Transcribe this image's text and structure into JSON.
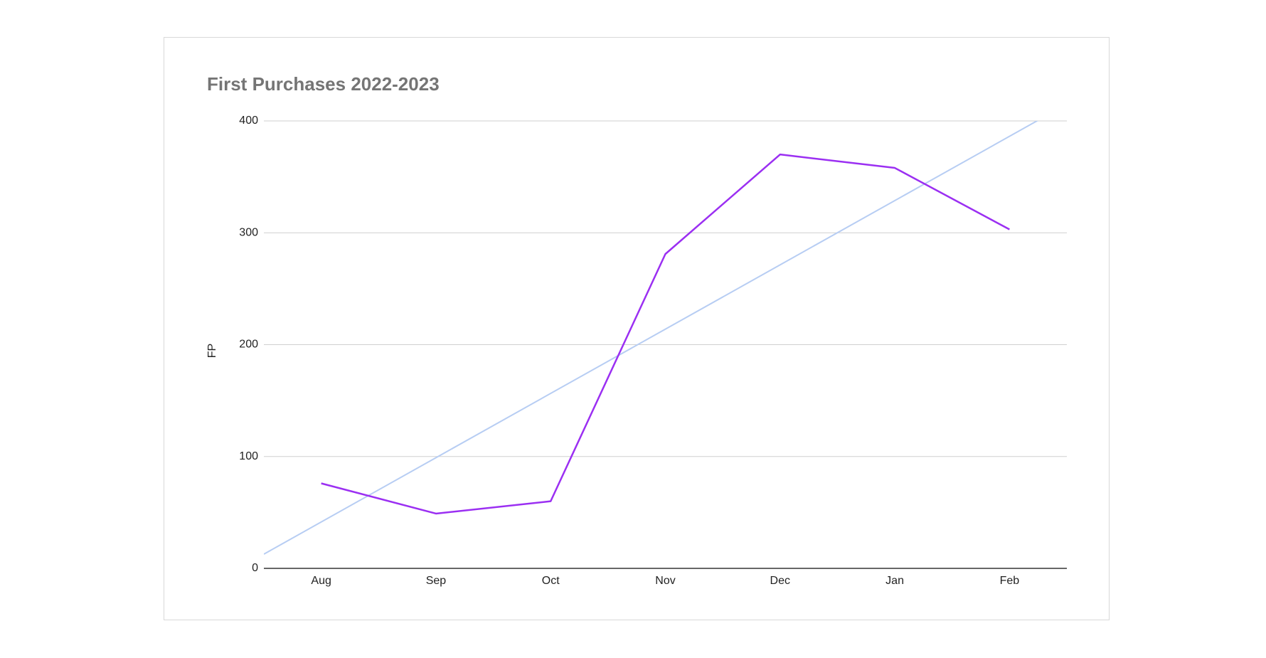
{
  "chart_data": {
    "type": "line",
    "title": "First Purchases  2022-2023",
    "y_label": "FP",
    "categories": [
      "Aug",
      "Sep",
      "Oct",
      "Nov",
      "Dec",
      "Jan",
      "Feb"
    ],
    "values": [
      76,
      49,
      60,
      281,
      370,
      358,
      303
    ],
    "color": "#9b2ff2",
    "trendline": {
      "type": "linear",
      "color": "#b7cdf3"
    },
    "ylim": [
      0,
      400
    ],
    "yticks": [
      0,
      100,
      200,
      300,
      400
    ],
    "grid": true
  }
}
